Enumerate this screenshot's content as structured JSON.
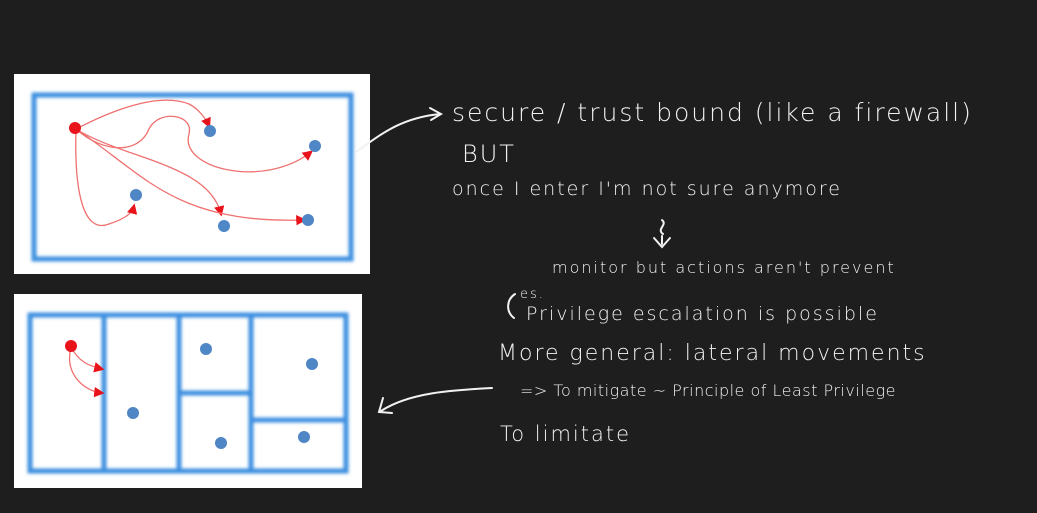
{
  "colors": {
    "background": "#1e1e1e",
    "panel": "#ffffff",
    "boundary": "#3d8fe0",
    "node": "#4f86c6",
    "attacker": "#e8131b",
    "path": "#f07070",
    "ink": "#f2f2f2"
  },
  "icons": [
    "arrow-right-icon",
    "arrow-down-icon",
    "arrow-left-icon",
    "tilde-icon"
  ],
  "notes": {
    "line1": "secure / trust bound (like a firewall)",
    "line2": "BUT",
    "line3": "once I enter I'm not sure anymore",
    "line4": "monitor but actions aren't prevent",
    "line5_prefix": "es.",
    "line5": "Privilege escalation is possible",
    "line6": "More general: lateral movements",
    "line7": "=> To mitigate ~ Principle of Least Privilege",
    "line8": "To limitate"
  }
}
